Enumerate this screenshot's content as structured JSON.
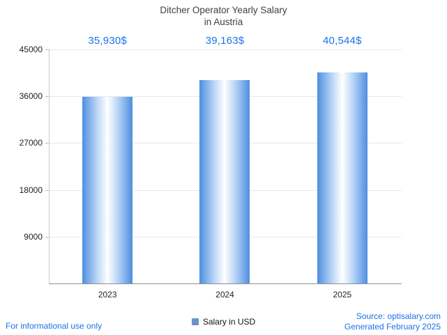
{
  "title": {
    "line1": "Ditcher Operator Yearly Salary",
    "line2": "in Austria"
  },
  "chart_data": {
    "type": "bar",
    "title": "Ditcher Operator Yearly Salary in Austria",
    "categories": [
      "2023",
      "2024",
      "2025"
    ],
    "values": [
      35930,
      39163,
      40544
    ],
    "data_labels": [
      "35,930$",
      "39,163$",
      "40,544$"
    ],
    "xlabel": "",
    "ylabel": "",
    "ylim": [
      0,
      45000
    ],
    "yticks": [
      9000,
      18000,
      27000,
      36000,
      45000
    ],
    "grid": true,
    "legend_position": "bottom",
    "legend": [
      {
        "label": "Salary in USD",
        "color": "#6f8fc9"
      }
    ]
  },
  "colors": {
    "bar_edge": "#4d8ee1",
    "bar_mid": "#bcd7f7",
    "bar_center": "#ffffff",
    "value_label_blue": "#1a73e8",
    "footer_blue": "#1a73e8",
    "title_gray": "#404040",
    "gridline_gray": "#e8e8e8"
  },
  "legend": {
    "label": "Salary in USD"
  },
  "footer": {
    "left": "For informational use only",
    "source": "Source: optisalary.com",
    "generated": "Generated February 2025"
  }
}
